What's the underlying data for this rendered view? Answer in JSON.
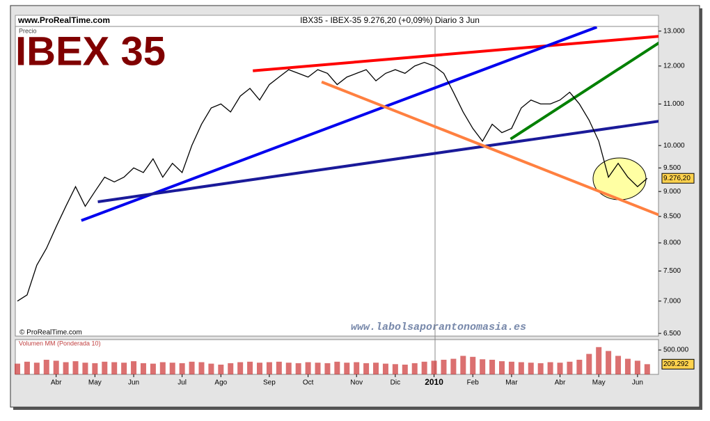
{
  "header": {
    "site": "www.ProRealTime.com",
    "info": "IBX35 - IBEX-35    9.276,20 (+0,09%)    Diario  3 Jun"
  },
  "chart_data": [
    {
      "type": "line",
      "title": "IBEX 35",
      "ylabel": "Precio",
      "copyright": "© ProRealTime.com",
      "watermark": "www.labolsaporantonomasia.es",
      "log_scale": true,
      "categories": [
        null,
        null,
        null,
        null,
        "Abr",
        null,
        null,
        null,
        "May",
        null,
        null,
        null,
        "Jun",
        null,
        null,
        null,
        null,
        "Jul",
        null,
        null,
        null,
        "Ago",
        null,
        null,
        null,
        null,
        "Sep",
        null,
        null,
        null,
        "Oct",
        null,
        null,
        null,
        null,
        "Nov",
        null,
        null,
        null,
        "Dic",
        null,
        null,
        null,
        "2010",
        null,
        null,
        null,
        "Feb",
        null,
        null,
        null,
        "Mar",
        null,
        null,
        null,
        null,
        "Abr",
        null,
        null,
        null,
        "May",
        null,
        null,
        null,
        "Jun",
        null
      ],
      "series": [
        {
          "name": "IBEX 35",
          "color": "#000000",
          "values": [
            7000,
            7100,
            7600,
            7900,
            8300,
            8700,
            9100,
            8700,
            9000,
            9300,
            9200,
            9300,
            9500,
            9400,
            9700,
            9300,
            9600,
            9400,
            10000,
            10500,
            10900,
            11000,
            10800,
            11200,
            11400,
            11100,
            11500,
            11700,
            11900,
            11800,
            11700,
            11900,
            11800,
            11500,
            11700,
            11800,
            11900,
            11600,
            11800,
            11900,
            11800,
            12000,
            12100,
            12000,
            11800,
            11300,
            10800,
            10400,
            10100,
            10500,
            10300,
            10400,
            10900,
            11100,
            11000,
            11000,
            11100,
            11300,
            11000,
            10600,
            10100,
            9300,
            9600,
            9300,
            9100,
            9276.2
          ],
          "last_label": "9.276,20"
        }
      ],
      "trendlines": [
        {
          "color": "#ff0000",
          "from": [
            24.3,
            11870
          ],
          "to": [
            66.4,
            12850
          ]
        },
        {
          "color": "#0000ee",
          "from": [
            6.6,
            8420
          ],
          "to": [
            59.8,
            13120
          ]
        },
        {
          "color": "#008000",
          "from": [
            50.9,
            10150
          ],
          "to": [
            66.4,
            12690
          ]
        },
        {
          "color": "#1a1a99",
          "from": [
            8.3,
            8790
          ],
          "to": [
            66.4,
            10580
          ]
        },
        {
          "color": "#ff8040",
          "from": [
            31.4,
            11570
          ],
          "to": [
            66.4,
            8515
          ]
        }
      ],
      "ylim": [
        6460,
        13140
      ],
      "yticks": [
        {
          "value": 6500,
          "label": "6.500"
        },
        {
          "value": 7000,
          "label": "7.000"
        },
        {
          "value": 7500,
          "label": "7.500"
        },
        {
          "value": 8000,
          "label": "8.000"
        },
        {
          "value": 8500,
          "label": "8.500"
        },
        {
          "value": 9000,
          "label": "9.000"
        },
        {
          "value": 9500,
          "label": "9.500"
        },
        {
          "value": 10000,
          "label": "10.000"
        },
        {
          "value": 11000,
          "label": "11.000"
        },
        {
          "value": 12000,
          "label": "12.000"
        },
        {
          "value": 13000,
          "label": "13.000"
        }
      ]
    },
    {
      "type": "bar",
      "title": "Volumen MM (Ponderada 10)",
      "color": "#cc3333",
      "values": [
        220000,
        260000,
        240000,
        300000,
        280000,
        250000,
        270000,
        240000,
        230000,
        260000,
        250000,
        240000,
        270000,
        230000,
        220000,
        250000,
        240000,
        230000,
        260000,
        250000,
        220000,
        200000,
        230000,
        250000,
        260000,
        240000,
        250000,
        260000,
        240000,
        230000,
        250000,
        240000,
        230000,
        260000,
        240000,
        250000,
        230000,
        240000,
        220000,
        210000,
        200000,
        230000,
        260000,
        280000,
        300000,
        320000,
        380000,
        360000,
        310000,
        300000,
        270000,
        260000,
        250000,
        240000,
        230000,
        250000,
        240000,
        260000,
        300000,
        420000,
        560000,
        480000,
        380000,
        320000,
        280000,
        209292
      ],
      "last_label": "209.292",
      "ylim": [
        0,
        714000
      ],
      "yticks": [
        {
          "value": 500000,
          "label": "500.000"
        }
      ]
    }
  ]
}
